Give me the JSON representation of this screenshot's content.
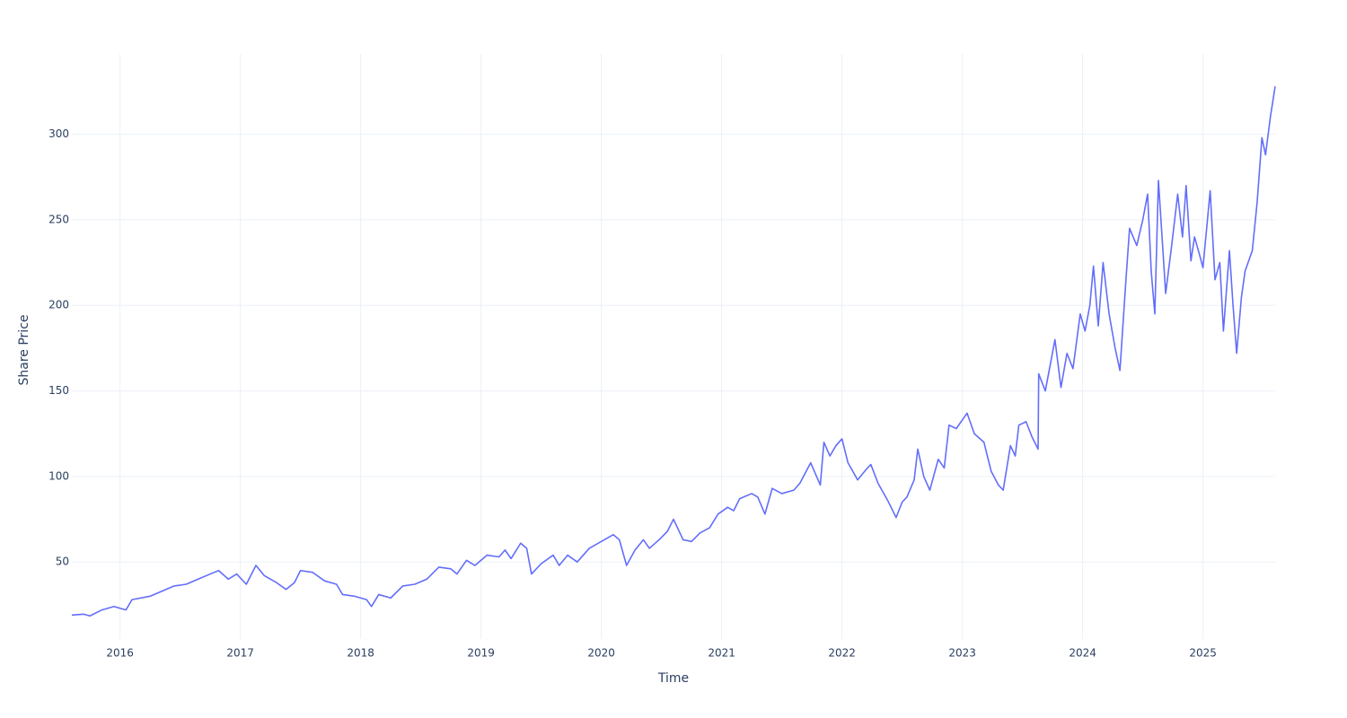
{
  "chart_data": {
    "type": "line",
    "xlabel": "Time",
    "ylabel": "Share Price",
    "x": [
      2015.6,
      2015.7,
      2015.75,
      2015.85,
      2015.95,
      2016.05,
      2016.1,
      2016.25,
      2016.35,
      2016.45,
      2016.55,
      2016.65,
      2016.75,
      2016.82,
      2016.9,
      2016.97,
      2017.05,
      2017.13,
      2017.2,
      2017.3,
      2017.38,
      2017.45,
      2017.5,
      2017.6,
      2017.7,
      2017.8,
      2017.85,
      2017.95,
      2018.05,
      2018.09,
      2018.15,
      2018.25,
      2018.35,
      2018.45,
      2018.55,
      2018.65,
      2018.75,
      2018.8,
      2018.88,
      2018.95,
      2019.05,
      2019.15,
      2019.2,
      2019.25,
      2019.33,
      2019.38,
      2019.42,
      2019.5,
      2019.6,
      2019.65,
      2019.72,
      2019.8,
      2019.9,
      2020.0,
      2020.1,
      2020.15,
      2020.21,
      2020.28,
      2020.35,
      2020.4,
      2020.48,
      2020.55,
      2020.6,
      2020.68,
      2020.75,
      2020.82,
      2020.9,
      2020.97,
      2021.05,
      2021.1,
      2021.15,
      2021.25,
      2021.3,
      2021.36,
      2021.42,
      2021.5,
      2021.6,
      2021.65,
      2021.74,
      2021.82,
      2021.85,
      2021.9,
      2021.95,
      2022.0,
      2022.05,
      2022.13,
      2022.2,
      2022.24,
      2022.3,
      2022.38,
      2022.45,
      2022.5,
      2022.54,
      2022.6,
      2022.63,
      2022.68,
      2022.73,
      2022.8,
      2022.85,
      2022.89,
      2022.95,
      2023.04,
      2023.1,
      2023.18,
      2023.24,
      2023.3,
      2023.34,
      2023.4,
      2023.44,
      2023.47,
      2023.53,
      2023.58,
      2023.63,
      2023.635,
      2023.69,
      2023.77,
      2023.82,
      2023.87,
      2023.92,
      2023.98,
      2024.02,
      2024.06,
      2024.09,
      2024.13,
      2024.17,
      2024.22,
      2024.27,
      2024.31,
      2024.36,
      2024.39,
      2024.45,
      2024.5,
      2024.54,
      2024.57,
      2024.6,
      2024.63,
      2024.66,
      2024.69,
      2024.74,
      2024.79,
      2024.83,
      2024.86,
      2024.9,
      2024.93,
      2024.97,
      2025.0,
      2025.06,
      2025.1,
      2025.14,
      2025.17,
      2025.22,
      2025.25,
      2025.28,
      2025.32,
      2025.35,
      2025.41,
      2025.45,
      2025.49,
      2025.52,
      2025.56,
      2025.6
    ],
    "values": [
      19,
      19.5,
      18.5,
      22,
      24,
      22,
      28,
      30,
      33,
      36,
      37,
      40,
      43,
      45,
      40,
      43,
      37,
      48,
      42,
      38,
      34,
      38,
      45,
      44,
      39,
      37,
      31,
      30,
      28,
      24,
      31,
      29,
      36,
      37,
      40,
      47,
      46,
      43,
      51,
      48,
      54,
      53,
      57,
      52,
      61,
      58,
      43,
      49,
      54,
      48,
      54,
      50,
      58,
      62,
      66,
      63,
      48,
      57,
      63,
      58,
      63,
      68,
      75,
      63,
      62,
      67,
      70,
      78,
      82,
      80,
      87,
      90,
      88,
      78,
      93,
      90,
      92,
      96,
      108,
      95,
      120,
      112,
      118,
      122,
      108,
      98,
      104,
      107,
      96,
      86,
      76,
      85,
      88,
      98,
      116,
      100,
      92,
      110,
      105,
      130,
      128,
      137,
      125,
      120,
      103,
      95,
      92,
      118,
      112,
      130,
      132,
      123,
      116,
      160,
      150,
      180,
      152,
      172,
      163,
      195,
      185,
      200,
      223,
      188,
      225,
      195,
      175,
      162,
      215,
      245,
      235,
      250,
      265,
      220,
      195,
      273,
      240,
      207,
      235,
      265,
      240,
      270,
      226,
      240,
      230,
      222,
      267,
      215,
      225,
      185,
      232,
      200,
      172,
      205,
      220,
      232,
      260,
      298,
      288,
      310,
      328
    ],
    "color": "#636efa",
    "xlim": [
      2015.6,
      2025.6
    ],
    "xticks": [
      2016,
      2017,
      2018,
      2019,
      2020,
      2021,
      2022,
      2023,
      2024,
      2025
    ],
    "ylim": [
      5,
      347
    ],
    "yticks": [
      50,
      100,
      150,
      200,
      250,
      300
    ],
    "grid": true
  }
}
